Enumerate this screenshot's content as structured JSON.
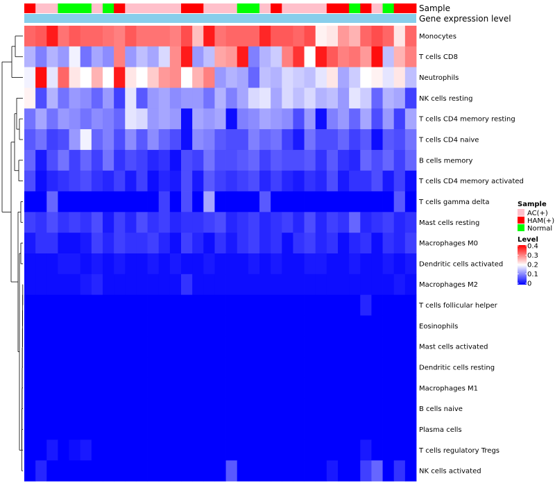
{
  "chart_data": {
    "type": "heatmap",
    "title": "",
    "annotation_labels": {
      "sample": "Sample",
      "gene": "Gene expression level"
    },
    "rows": [
      "Monocytes",
      "T cells CD8",
      "Neutrophils",
      "NK cells resting",
      "T cells CD4 memory resting",
      "T cells CD4 naive",
      "B cells memory",
      "T cells CD4 memory activated",
      "T cells gamma delta",
      "Mast cells resting",
      "Macrophages M0",
      "Dendritic cells activated",
      "Macrophages M2",
      "T cells follicular helper",
      "Eosinophils",
      "Mast cells activated",
      "Dendritic cells resting",
      "Macrophages M1",
      "B cells naive",
      "Plasma cells",
      "T cells regulatory  Tregs",
      "NK cells activated"
    ],
    "sample_groups": [
      "HAM(+)",
      "AC(+)",
      "AC(+)",
      "Normal",
      "Normal",
      "Normal",
      "AC(+)",
      "Normal",
      "HAM(+)",
      "AC(+)",
      "AC(+)",
      "AC(+)",
      "AC(+)",
      "AC(+)",
      "HAM(+)",
      "HAM(+)",
      "AC(+)",
      "AC(+)",
      "AC(+)",
      "Normal",
      "Normal",
      "AC(+)",
      "HAM(+)",
      "AC(+)",
      "AC(+)",
      "AC(+)",
      "AC(+)",
      "HAM(+)",
      "HAM(+)",
      "Normal",
      "HAM(+)",
      "AC(+)",
      "Normal",
      "HAM(+)",
      "HAM(+)"
    ],
    "values": [
      [
        0.32,
        0.33,
        0.38,
        0.31,
        0.33,
        0.32,
        0.32,
        0.31,
        0.3,
        0.33,
        0.31,
        0.31,
        0.31,
        0.3,
        0.34,
        0.25,
        0.38,
        0.31,
        0.32,
        0.32,
        0.32,
        0.37,
        0.33,
        0.33,
        0.32,
        0.34,
        0.21,
        0.22,
        0.28,
        0.26,
        0.32,
        0.34,
        0.32,
        0.22,
        0.32
      ],
      [
        0.14,
        0.1,
        0.14,
        0.12,
        0.19,
        0.09,
        0.13,
        0.11,
        0.3,
        0.12,
        0.15,
        0.13,
        0.17,
        0.29,
        0.38,
        0.12,
        0.15,
        0.27,
        0.28,
        0.38,
        0.1,
        0.14,
        0.16,
        0.3,
        0.36,
        0.2,
        0.38,
        0.33,
        0.3,
        0.31,
        0.28,
        0.39,
        0.15,
        0.26,
        0.3
      ],
      [
        0.19,
        0.39,
        0.18,
        0.32,
        0.22,
        0.2,
        0.26,
        0.2,
        0.38,
        0.22,
        0.2,
        0.24,
        0.28,
        0.29,
        0.2,
        0.26,
        0.3,
        0.12,
        0.14,
        0.13,
        0.08,
        0.15,
        0.14,
        0.17,
        0.16,
        0.15,
        0.18,
        0.22,
        0.13,
        0.16,
        0.2,
        0.21,
        0.18,
        0.22,
        0.15
      ],
      [
        0.21,
        0.06,
        0.14,
        0.09,
        0.12,
        0.11,
        0.08,
        0.12,
        0.05,
        0.18,
        0.07,
        0.12,
        0.13,
        0.11,
        0.12,
        0.12,
        0.09,
        0.14,
        0.1,
        0.13,
        0.17,
        0.18,
        0.13,
        0.17,
        0.15,
        0.17,
        0.14,
        0.15,
        0.12,
        0.18,
        0.16,
        0.08,
        0.14,
        0.13,
        0.05
      ],
      [
        0.09,
        0.13,
        0.09,
        0.12,
        0.11,
        0.09,
        0.11,
        0.1,
        0.08,
        0.18,
        0.17,
        0.12,
        0.13,
        0.12,
        0.01,
        0.13,
        0.12,
        0.13,
        0.01,
        0.1,
        0.11,
        0.13,
        0.12,
        0.11,
        0.06,
        0.12,
        0.01,
        0.1,
        0.12,
        0.08,
        0.13,
        0.06,
        0.12,
        0.05,
        0.13
      ],
      [
        0.07,
        0.09,
        0.05,
        0.06,
        0.12,
        0.19,
        0.08,
        0.1,
        0.06,
        0.11,
        0.07,
        0.11,
        0.08,
        0.06,
        0.01,
        0.11,
        0.1,
        0.07,
        0.06,
        0.06,
        0.1,
        0.08,
        0.09,
        0.05,
        0.02,
        0.09,
        0.06,
        0.06,
        0.08,
        0.05,
        0.07,
        0.01,
        0.07,
        0.06,
        0.09
      ],
      [
        0.08,
        0.02,
        0.06,
        0.09,
        0.05,
        0.08,
        0.05,
        0.09,
        0.04,
        0.06,
        0.05,
        0.03,
        0.04,
        0.01,
        0.06,
        0.05,
        0.09,
        0.06,
        0.06,
        0.07,
        0.08,
        0.05,
        0.07,
        0.06,
        0.06,
        0.07,
        0.04,
        0.07,
        0.04,
        0.03,
        0.08,
        0.06,
        0.08,
        0.05,
        0.08
      ],
      [
        0.06,
        0.01,
        0.03,
        0.04,
        0.05,
        0.06,
        0.04,
        0.03,
        0.05,
        0.02,
        0.05,
        0.01,
        0.03,
        0.02,
        0.06,
        0.02,
        0.07,
        0.05,
        0.04,
        0.05,
        0.06,
        0.03,
        0.05,
        0.03,
        0.02,
        0.04,
        0.03,
        0.06,
        0.02,
        0.04,
        0.04,
        0.06,
        0.02,
        0.05,
        0.01
      ],
      [
        0.0,
        0.0,
        0.08,
        0.0,
        0.0,
        0.0,
        0.0,
        0.0,
        0.0,
        0.0,
        0.0,
        0.0,
        0.05,
        0.0,
        0.06,
        0.0,
        0.13,
        0.0,
        0.0,
        0.0,
        0.0,
        0.07,
        0.0,
        0.0,
        0.0,
        0.0,
        0.0,
        0.0,
        0.0,
        0.0,
        0.0,
        0.0,
        0.0,
        0.07,
        0.0
      ],
      [
        0.05,
        0.04,
        0.06,
        0.04,
        0.05,
        0.04,
        0.06,
        0.02,
        0.05,
        0.03,
        0.06,
        0.04,
        0.05,
        0.03,
        0.04,
        0.04,
        0.05,
        0.06,
        0.03,
        0.04,
        0.05,
        0.03,
        0.04,
        0.05,
        0.03,
        0.06,
        0.03,
        0.05,
        0.04,
        0.08,
        0.03,
        0.04,
        0.05,
        0.03,
        0.04
      ],
      [
        0.02,
        0.04,
        0.04,
        0.01,
        0.01,
        0.02,
        0.05,
        0.03,
        0.05,
        0.04,
        0.04,
        0.05,
        0.03,
        0.01,
        0.05,
        0.03,
        0.01,
        0.04,
        0.02,
        0.04,
        0.05,
        0.03,
        0.04,
        0.01,
        0.04,
        0.05,
        0.03,
        0.04,
        0.01,
        0.03,
        0.04,
        0.01,
        0.04,
        0.03,
        0.05
      ],
      [
        0.01,
        0.01,
        0.01,
        0.02,
        0.02,
        0.01,
        0.02,
        0.01,
        0.02,
        0.01,
        0.01,
        0.02,
        0.01,
        0.02,
        0.01,
        0.01,
        0.02,
        0.01,
        0.01,
        0.01,
        0.02,
        0.01,
        0.02,
        0.01,
        0.01,
        0.02,
        0.02,
        0.01,
        0.01,
        0.02,
        0.01,
        0.01,
        0.02,
        0.01,
        0.02
      ],
      [
        0.01,
        0.01,
        0.01,
        0.01,
        0.01,
        0.02,
        0.03,
        0.01,
        0.01,
        0.01,
        0.01,
        0.01,
        0.01,
        0.01,
        0.04,
        0.01,
        0.01,
        0.01,
        0.01,
        0.01,
        0.01,
        0.01,
        0.01,
        0.01,
        0.01,
        0.01,
        0.01,
        0.01,
        0.01,
        0.01,
        0.01,
        0.01,
        0.01,
        0.02,
        0.01
      ],
      [
        0.0,
        0.0,
        0.0,
        0.0,
        0.0,
        0.0,
        0.0,
        0.0,
        0.0,
        0.0,
        0.0,
        0.0,
        0.0,
        0.0,
        0.0,
        0.0,
        0.0,
        0.0,
        0.0,
        0.0,
        0.0,
        0.0,
        0.0,
        0.0,
        0.0,
        0.0,
        0.0,
        0.0,
        0.0,
        0.0,
        0.03,
        0.0,
        0.0,
        0.0,
        0.0
      ],
      [
        0.0,
        0.0,
        0.0,
        0.0,
        0.0,
        0.0,
        0.0,
        0.0,
        0.0,
        0.0,
        0.0,
        0.0,
        0.0,
        0.0,
        0.0,
        0.0,
        0.0,
        0.0,
        0.0,
        0.0,
        0.0,
        0.0,
        0.0,
        0.0,
        0.0,
        0.0,
        0.0,
        0.0,
        0.0,
        0.0,
        0.0,
        0.0,
        0.0,
        0.0,
        0.0
      ],
      [
        0.0,
        0.0,
        0.0,
        0.0,
        0.0,
        0.0,
        0.0,
        0.0,
        0.0,
        0.0,
        0.0,
        0.0,
        0.0,
        0.0,
        0.0,
        0.0,
        0.0,
        0.0,
        0.0,
        0.0,
        0.0,
        0.0,
        0.0,
        0.0,
        0.0,
        0.0,
        0.0,
        0.0,
        0.0,
        0.0,
        0.0,
        0.0,
        0.0,
        0.0,
        0.0
      ],
      [
        0.0,
        0.0,
        0.0,
        0.0,
        0.0,
        0.0,
        0.0,
        0.0,
        0.0,
        0.0,
        0.0,
        0.0,
        0.0,
        0.0,
        0.0,
        0.0,
        0.0,
        0.0,
        0.0,
        0.0,
        0.0,
        0.0,
        0.0,
        0.0,
        0.0,
        0.0,
        0.0,
        0.0,
        0.0,
        0.0,
        0.0,
        0.0,
        0.0,
        0.0,
        0.0
      ],
      [
        0.0,
        0.0,
        0.0,
        0.0,
        0.0,
        0.0,
        0.0,
        0.0,
        0.0,
        0.0,
        0.0,
        0.0,
        0.0,
        0.0,
        0.0,
        0.0,
        0.0,
        0.0,
        0.0,
        0.0,
        0.0,
        0.0,
        0.0,
        0.0,
        0.0,
        0.0,
        0.0,
        0.0,
        0.0,
        0.0,
        0.0,
        0.0,
        0.0,
        0.0,
        0.0
      ],
      [
        0.0,
        0.0,
        0.0,
        0.0,
        0.0,
        0.0,
        0.0,
        0.0,
        0.0,
        0.0,
        0.0,
        0.0,
        0.0,
        0.0,
        0.0,
        0.0,
        0.0,
        0.0,
        0.0,
        0.0,
        0.0,
        0.0,
        0.0,
        0.0,
        0.0,
        0.0,
        0.0,
        0.0,
        0.0,
        0.0,
        0.0,
        0.0,
        0.0,
        0.0,
        0.0
      ],
      [
        0.0,
        0.0,
        0.0,
        0.0,
        0.0,
        0.0,
        0.0,
        0.0,
        0.0,
        0.0,
        0.0,
        0.0,
        0.0,
        0.0,
        0.0,
        0.0,
        0.0,
        0.0,
        0.0,
        0.0,
        0.0,
        0.0,
        0.0,
        0.0,
        0.0,
        0.0,
        0.0,
        0.0,
        0.0,
        0.0,
        0.0,
        0.0,
        0.0,
        0.0,
        0.0
      ],
      [
        0.0,
        0.0,
        0.02,
        0.0,
        0.01,
        0.02,
        0.0,
        0.0,
        0.0,
        0.0,
        0.0,
        0.0,
        0.0,
        0.0,
        0.0,
        0.0,
        0.0,
        0.0,
        0.0,
        0.0,
        0.0,
        0.0,
        0.0,
        0.0,
        0.0,
        0.0,
        0.0,
        0.0,
        0.0,
        0.0,
        0.02,
        0.0,
        0.0,
        0.0,
        0.0
      ],
      [
        0.0,
        0.03,
        0.0,
        0.0,
        0.0,
        0.0,
        0.0,
        0.0,
        0.0,
        0.0,
        0.0,
        0.0,
        0.0,
        0.0,
        0.0,
        0.0,
        0.0,
        0.0,
        0.07,
        0.0,
        0.0,
        0.0,
        0.0,
        0.0,
        0.0,
        0.0,
        0.0,
        0.02,
        0.0,
        0.0,
        0.05,
        0.08,
        0.0,
        0.04,
        0.0
      ]
    ],
    "color_scale": {
      "min": 0,
      "max": 0.4,
      "low": "#0000ff",
      "mid": "#ffffff",
      "high": "#ff0000"
    },
    "legend": {
      "sample_title": "Sample",
      "sample_entries": [
        {
          "label": "AC(+)",
          "color": "#ffc0cb"
        },
        {
          "label": "HAM(+)",
          "color": "#ff0000"
        },
        {
          "label": "Normal",
          "color": "#00ff00"
        }
      ],
      "level_title": "Level",
      "level_ticks": [
        "0.4",
        "0.3",
        "0.2",
        "0.1",
        "0"
      ],
      "position": "right"
    },
    "gene_bar_color": "#87ceeb",
    "dendrogram": "rows"
  }
}
